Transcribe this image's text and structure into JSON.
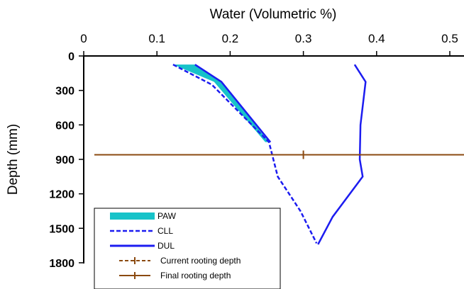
{
  "chart_data": {
    "type": "line",
    "xlabel": "Water (Volumetric %)",
    "ylabel": "Depth (mm)",
    "xlim": [
      0,
      0.52
    ],
    "ylim": [
      0,
      1800
    ],
    "x_axis_position": "top",
    "y_axis_inverted": true,
    "x_ticks": [
      "0",
      "0.1",
      "0.2",
      "0.3",
      "0.4",
      "0.5"
    ],
    "y_ticks": [
      "0",
      "300",
      "600",
      "900",
      "1200",
      "1500",
      "1800"
    ],
    "legend_position": "bottom-left",
    "colors": {
      "paw": "#17c3c9",
      "ll": "#1c1cf0",
      "rooting": "#8b4a10"
    },
    "series": [
      {
        "name": "PAW",
        "kind": "area",
        "depth": [
          75,
          225,
          750
        ],
        "x_left": [
          0.122,
          0.178,
          0.248
        ],
        "x_right": [
          0.152,
          0.188,
          0.253
        ]
      },
      {
        "name": "CLL",
        "kind": "dashed-line",
        "points": [
          [
            0.122,
            75
          ],
          [
            0.175,
            250
          ],
          [
            0.253,
            750
          ],
          [
            0.265,
            1050
          ],
          [
            0.296,
            1350
          ],
          [
            0.318,
            1630
          ]
        ]
      },
      {
        "name": "DUL",
        "kind": "solid-line",
        "points": [
          [
            0.152,
            75
          ],
          [
            0.188,
            225
          ],
          [
            0.255,
            750
          ]
        ]
      },
      {
        "name": "DUL",
        "kind": "solid-line",
        "points": [
          [
            0.37,
            75
          ],
          [
            0.385,
            225
          ],
          [
            0.378,
            600
          ],
          [
            0.377,
            900
          ],
          [
            0.381,
            1050
          ],
          [
            0.34,
            1400
          ],
          [
            0.32,
            1640
          ]
        ]
      },
      {
        "name": "Current rooting depth",
        "kind": "dashed-hline",
        "depth": 860
      },
      {
        "name": "Final rooting depth",
        "kind": "solid-hline",
        "depth": 860,
        "marker_x": 0.3
      }
    ],
    "legend": [
      {
        "label": "PAW",
        "style": "area"
      },
      {
        "label": "CLL",
        "style": "dashed"
      },
      {
        "label": "DUL",
        "style": "solid"
      },
      {
        "label": "Current rooting depth",
        "style": "dashed-marker"
      },
      {
        "label": "Final rooting depth",
        "style": "solid-marker"
      }
    ]
  }
}
